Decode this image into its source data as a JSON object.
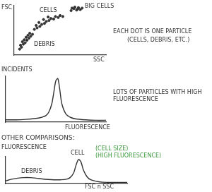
{
  "chart_data": [
    {
      "type": "scatter",
      "x_label": "SSC",
      "y_label": "FSC",
      "xlim": [
        0,
        100
      ],
      "ylim": [
        0,
        100
      ],
      "grid": false,
      "tick_labels": false,
      "color": "#333333",
      "marker": "circle",
      "x": [
        6,
        8,
        7,
        10,
        9,
        12,
        11,
        14,
        13,
        16,
        15,
        18,
        17,
        20,
        22,
        25,
        24,
        28,
        30,
        27,
        33,
        35,
        32,
        38,
        40,
        37,
        43,
        45,
        48,
        50,
        53,
        62,
        65,
        68,
        70,
        72,
        66,
        74,
        63,
        69
      ],
      "values": [
        12,
        16,
        20,
        22,
        27,
        25,
        31,
        30,
        36,
        34,
        40,
        38,
        44,
        42,
        52,
        55,
        60,
        58,
        62,
        66,
        64,
        68,
        72,
        70,
        74,
        77,
        73,
        78,
        76,
        80,
        78,
        90,
        94,
        91,
        96,
        92,
        97,
        95,
        95,
        93
      ],
      "annotations": [
        {
          "text": "BIG CELLS"
        },
        {
          "text": "CELLS"
        },
        {
          "text": "DEBRIS"
        },
        {
          "text": "EACH DOT IS ONE PARTICLE"
        },
        {
          "text": "(CELLS, DEBRIS, ETC.)"
        }
      ]
    },
    {
      "type": "line",
      "x_label": "FLUORESCENCE",
      "y_label": "INCIDENTS",
      "xlim": [
        0,
        100
      ],
      "ylim": [
        0,
        100
      ],
      "grid": false,
      "tick_labels": false,
      "color": "#333333",
      "line_style": "solid",
      "x": [
        0,
        10,
        20,
        30,
        35,
        40,
        43,
        46,
        48,
        50,
        52,
        54,
        56,
        60,
        65,
        70,
        80,
        90,
        100
      ],
      "values": [
        5,
        5,
        6,
        8,
        10,
        14,
        22,
        40,
        65,
        90,
        95,
        70,
        40,
        18,
        10,
        7,
        5,
        4,
        4
      ],
      "annotations": [
        {
          "text": "LOTS OF PARTICLES WITH HIGH FLUORESCENCE"
        }
      ]
    },
    {
      "type": "line",
      "title": "OTHER COMPARISONS:",
      "x_label": "FSC n SSC",
      "y_label": "FLUORESCENCE",
      "xlim": [
        0,
        100
      ],
      "ylim": [
        0,
        100
      ],
      "grid": false,
      "tick_labels": false,
      "color": "#333333",
      "line_style": "solid",
      "x": [
        0,
        5,
        10,
        15,
        20,
        25,
        30,
        35,
        40,
        45,
        50,
        53,
        56,
        58,
        60,
        62,
        64,
        67,
        70,
        75,
        80,
        90,
        100
      ],
      "values": [
        10,
        16,
        20,
        22,
        22,
        20,
        17,
        15,
        14,
        14,
        16,
        22,
        40,
        70,
        90,
        80,
        50,
        25,
        14,
        8,
        5,
        4,
        4
      ],
      "annotations": [
        {
          "text": "CELL"
        },
        {
          "text": "(CELL SIZE)",
          "color": "#3c9a3c"
        },
        {
          "text": "(HIGH FLUORESCENCE)",
          "color": "#3c9a3c"
        },
        {
          "text": "DEBRIS"
        }
      ]
    }
  ]
}
